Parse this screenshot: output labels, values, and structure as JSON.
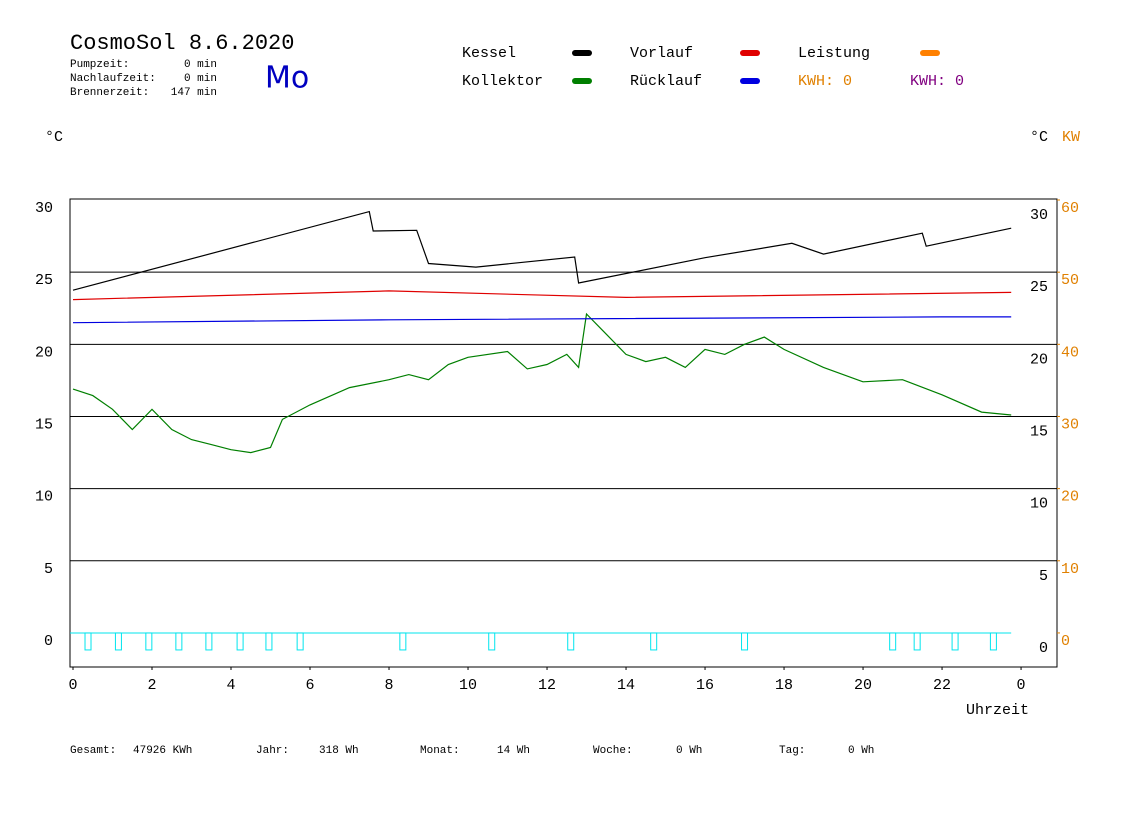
{
  "header": {
    "title": "CosmoSol 8.6.2020",
    "day": "Mo",
    "times": [
      [
        "Pumpzeit:",
        "0 min"
      ],
      [
        "Nachlaufzeit:",
        "0 min"
      ],
      [
        "Brennerzeit:",
        "147 min"
      ]
    ]
  },
  "chart_data": {
    "type": "line",
    "y_unit": "°C",
    "y2_unit": "°C",
    "y2_unit2": "KW",
    "xlabel": "Uhrzeit",
    "xlim": [
      -0.076,
      24.91
    ],
    "ylim": [
      -2.36,
      30.07
    ],
    "y2lim": [
      -4.72,
      60.14
    ],
    "xticks": [
      0,
      2,
      4,
      6,
      8,
      10,
      12,
      14,
      16,
      18,
      20,
      22,
      {
        "value": 24,
        "label": "0"
      }
    ],
    "yticks": [
      0,
      5,
      10,
      15,
      20,
      25,
      30
    ],
    "y2ticks": [
      0,
      10,
      20,
      30,
      40,
      50,
      60
    ],
    "grid": true,
    "series": [
      {
        "name": "Kessel",
        "color": "#000000",
        "x": [
          0,
          7.5,
          7.6,
          8.7,
          9,
          10.2,
          12.7,
          12.8,
          16,
          18.2,
          19,
          21.5,
          21.6,
          23.75
        ],
        "values": [
          23.75,
          29.2,
          27.85,
          27.9,
          25.6,
          25.35,
          26.05,
          24.25,
          26.0,
          27.0,
          26.25,
          27.7,
          26.8,
          28.05
        ]
      },
      {
        "name": "Kollektor",
        "color": "#007f00",
        "x": [
          0,
          0.5,
          1,
          1.5,
          2,
          2.5,
          3,
          3.5,
          4,
          4.5,
          5,
          5.3,
          6,
          7,
          8,
          8.5,
          9,
          9.5,
          10,
          11,
          11.5,
          12,
          12.5,
          12.8,
          13,
          13.5,
          14,
          14.5,
          15,
          15.5,
          16,
          16.5,
          17,
          17.5,
          18,
          19,
          20,
          21,
          22,
          23,
          23.75
        ],
        "values": [
          16.9,
          16.45,
          15.5,
          14.1,
          15.5,
          14.1,
          13.4,
          13.05,
          12.7,
          12.5,
          12.85,
          14.8,
          15.8,
          17.0,
          17.55,
          17.9,
          17.55,
          18.6,
          19.1,
          19.5,
          18.3,
          18.6,
          19.3,
          18.4,
          22.1,
          20.7,
          19.3,
          18.8,
          19.1,
          18.4,
          19.65,
          19.3,
          20.0,
          20.5,
          19.65,
          18.4,
          17.4,
          17.55,
          16.5,
          15.3,
          15.1
        ]
      },
      {
        "name": "Vorlauf",
        "color": "#e00000",
        "x": [
          0,
          8,
          14,
          23.75
        ],
        "values": [
          23.1,
          23.7,
          23.25,
          23.6
        ]
      },
      {
        "name": "Rücklauf",
        "color": "#0000e0",
        "x": [
          0,
          8,
          22,
          23.75
        ],
        "values": [
          21.5,
          21.7,
          21.9,
          21.9
        ]
      }
    ],
    "extra_legend": [
      {
        "name": "Leistung",
        "color": "#ff8000"
      }
    ],
    "kwh": [
      {
        "label": "KWH: 0",
        "color": "#e08000"
      },
      {
        "label": "KWH: 0",
        "color": "#800080"
      }
    ],
    "pulses": {
      "color": "#00e5ee",
      "x": [
        0.38,
        1.15,
        1.92,
        2.68,
        3.44,
        4.23,
        4.96,
        5.75,
        8.35,
        10.6,
        12.6,
        14.7,
        17.0,
        20.75,
        21.37,
        22.33,
        23.3
      ]
    }
  },
  "footer": [
    [
      "Gesamt:",
      "47926 KWh"
    ],
    [
      "Jahr:",
      "318 Wh"
    ],
    [
      "Monat:",
      "14 Wh"
    ],
    [
      "Woche:",
      "0 Wh"
    ],
    [
      "Tag:",
      "0 Wh"
    ]
  ]
}
